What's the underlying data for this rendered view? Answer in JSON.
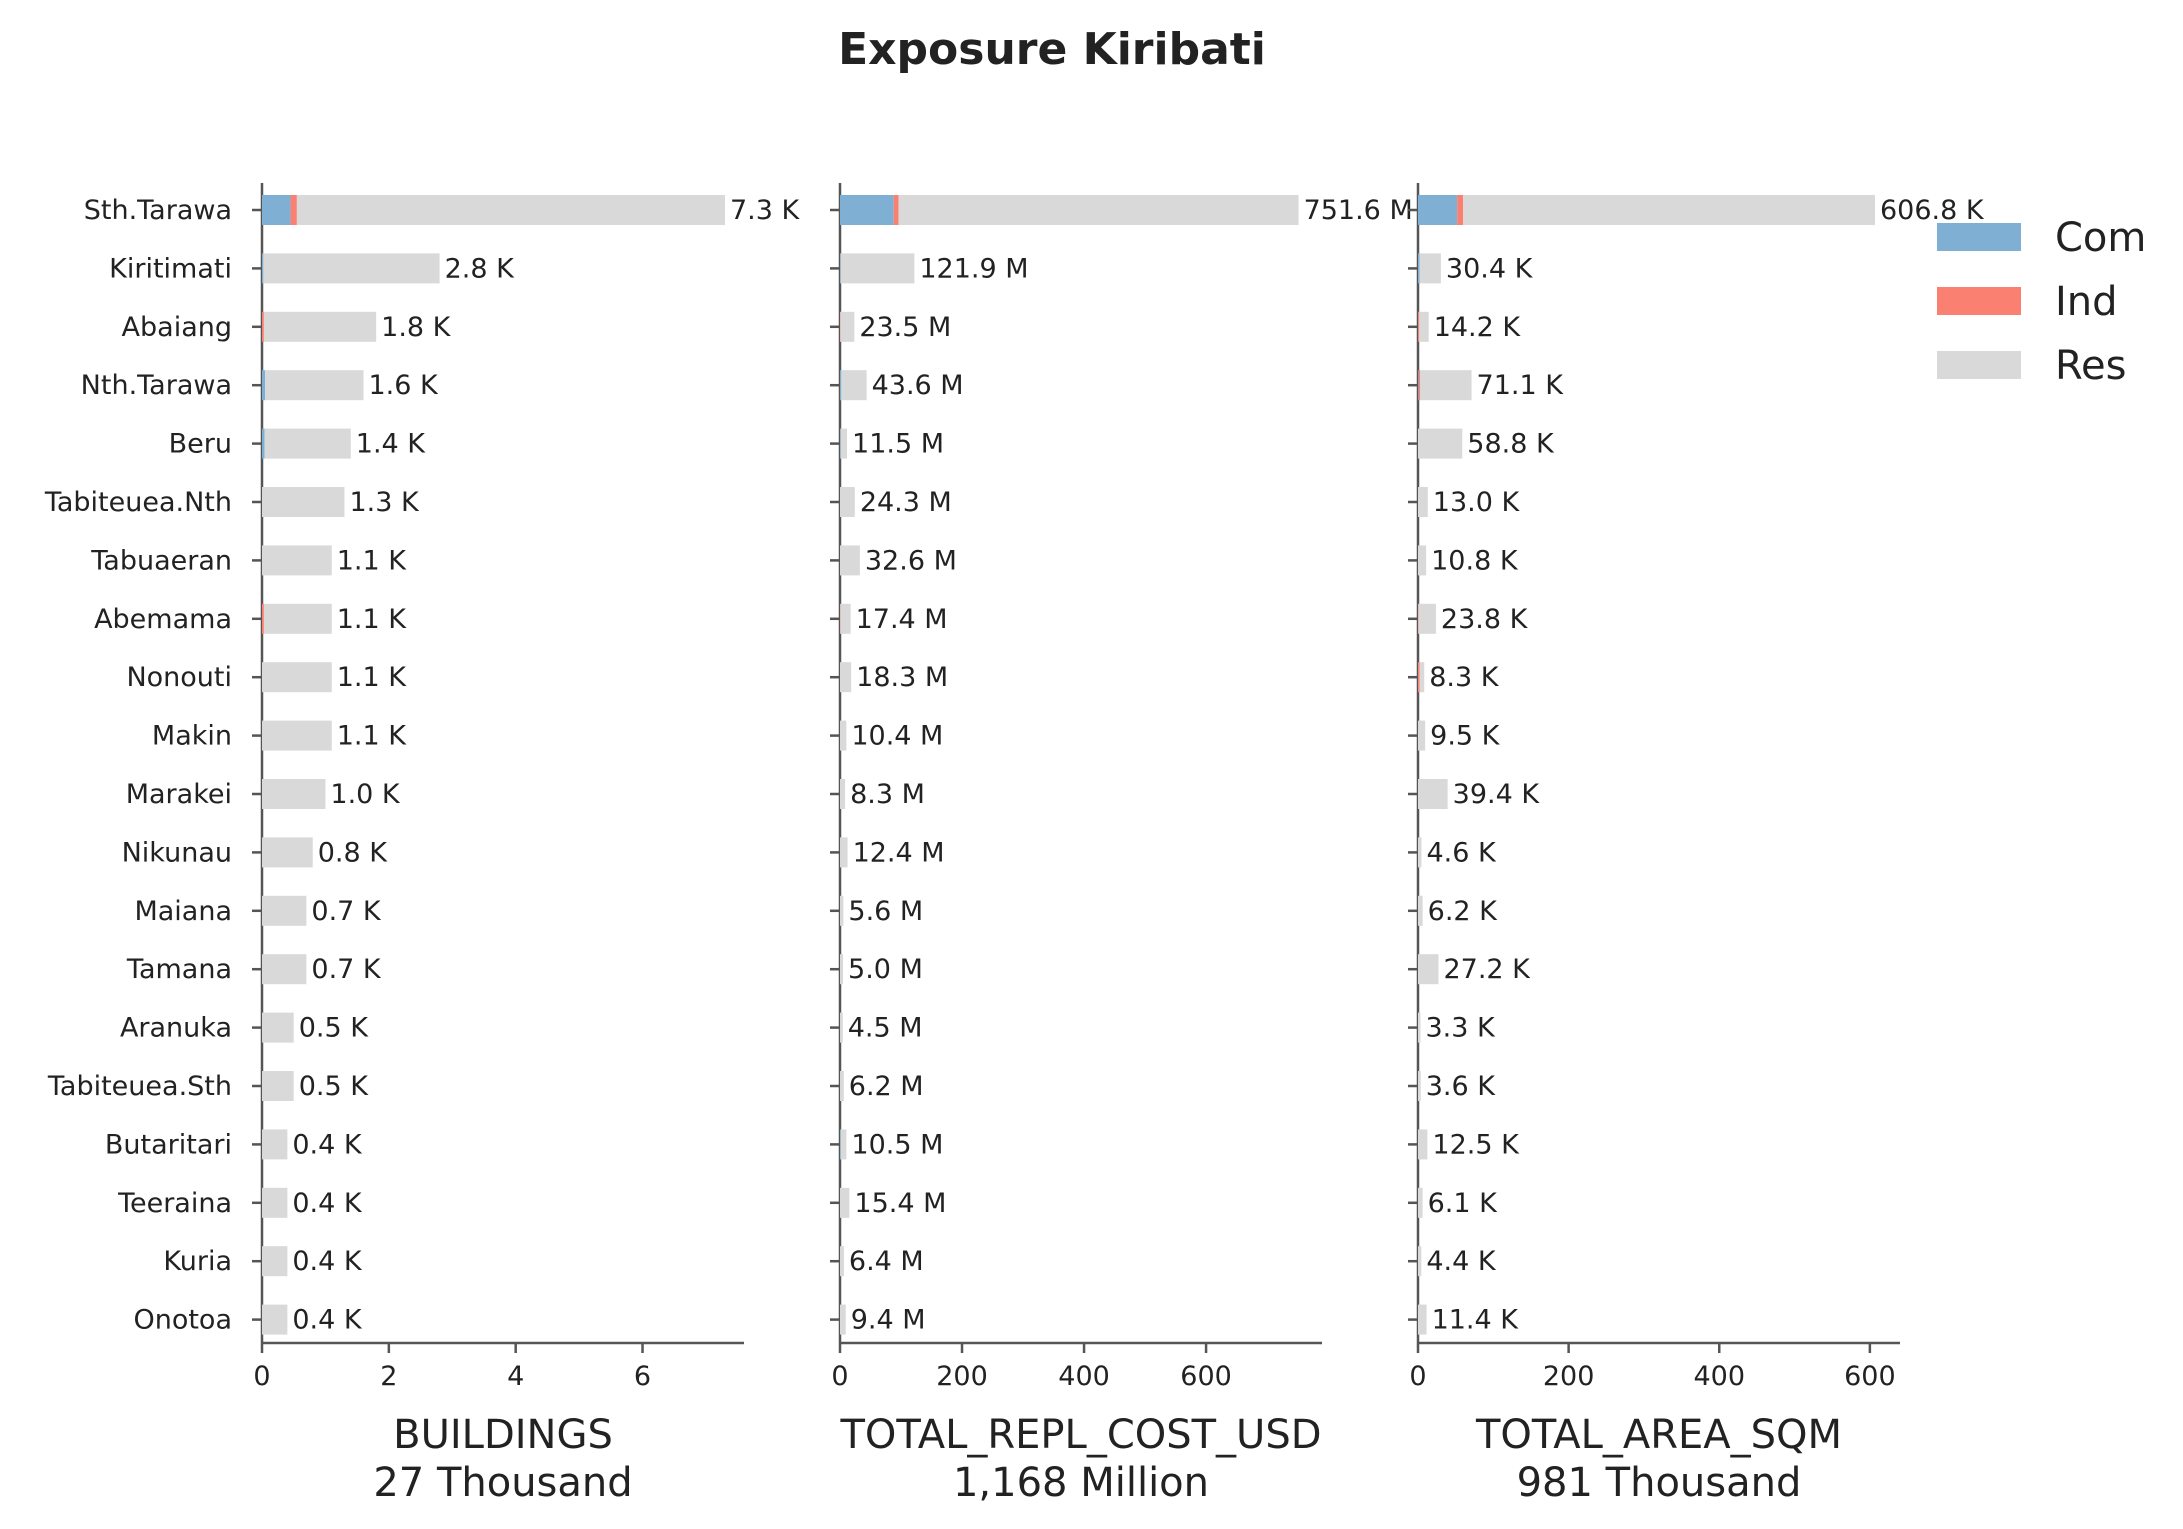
{
  "chart_data": {
    "type": "bar",
    "orientation": "horizontal-stacked",
    "title": "Exposure Kiribati",
    "categories": [
      "Sth.Tarawa",
      "Kiritimati",
      "Abaiang",
      "Nth.Tarawa",
      "Beru",
      "Tabiteuea.Nth",
      "Tabuaeran",
      "Abemama",
      "Nonouti",
      "Makin",
      "Marakei",
      "Nikunau",
      "Maiana",
      "Tamana",
      "Aranuka",
      "Tabiteuea.Sth",
      "Butaritari",
      "Teeraina",
      "Kuria",
      "Onotoa"
    ],
    "legend": {
      "position": "top-right",
      "entries": [
        {
          "label": "Com",
          "color": "#7fb0d4"
        },
        {
          "label": "Ind",
          "color": "#fa8072"
        },
        {
          "label": "Res",
          "color": "#d9d9d9"
        }
      ]
    },
    "panels": [
      {
        "xlabel": "BUILDINGS",
        "subtitle": "27 Thousand",
        "xlim": [
          0,
          7.6
        ],
        "xticks": [
          0,
          2,
          4,
          6
        ],
        "series": [
          {
            "name": "Com",
            "values": [
              0.45,
              0.02,
              0.0,
              0.05,
              0.04,
              0.0,
              0.0,
              0.0,
              0.0,
              0.0,
              0.0,
              0.0,
              0.0,
              0.0,
              0.0,
              0.0,
              0.0,
              0.0,
              0.0,
              0.0
            ]
          },
          {
            "name": "Ind",
            "values": [
              0.1,
              0.0,
              0.03,
              0.0,
              0.0,
              0.0,
              0.0,
              0.03,
              0.0,
              0.0,
              0.0,
              0.0,
              0.0,
              0.0,
              0.0,
              0.0,
              0.0,
              0.0,
              0.0,
              0.0
            ]
          },
          {
            "name": "Res",
            "values": [
              6.75,
              2.78,
              1.77,
              1.55,
              1.36,
              1.3,
              1.1,
              1.07,
              1.1,
              1.1,
              1.0,
              0.8,
              0.7,
              0.7,
              0.5,
              0.5,
              0.4,
              0.4,
              0.4,
              0.4
            ]
          }
        ],
        "labels": [
          "7.3 K",
          "2.8 K",
          "1.8 K",
          "1.6 K",
          "1.4 K",
          "1.3 K",
          "1.1 K",
          "1.1 K",
          "1.1 K",
          "1.1 K",
          "1.0 K",
          "0.8 K",
          "0.7 K",
          "0.7 K",
          "0.5 K",
          "0.5 K",
          "0.4 K",
          "0.4 K",
          "0.4 K",
          "0.4 K"
        ]
      },
      {
        "xlabel": "TOTAL_REPL_COST_USD",
        "subtitle": "1,168 Million",
        "xlim": [
          0,
          790
        ],
        "xticks": [
          0,
          200,
          400,
          600
        ],
        "series": [
          {
            "name": "Com",
            "values": [
              88,
              1,
              0,
              2,
              1,
              0,
              0,
              0,
              0,
              0,
              0,
              0,
              0,
              0,
              0,
              0,
              1,
              0,
              0,
              0
            ]
          },
          {
            "name": "Ind",
            "values": [
              8,
              0,
              0.5,
              0,
              0,
              0,
              0,
              0.5,
              0,
              0,
              0,
              0,
              0,
              0,
              0,
              0,
              0,
              0,
              0,
              0
            ]
          },
          {
            "name": "Res",
            "values": [
              655.6,
              120.9,
              23.0,
              41.6,
              10.5,
              24.3,
              32.6,
              16.9,
              18.3,
              10.4,
              8.3,
              12.4,
              5.6,
              5.0,
              4.5,
              6.2,
              9.5,
              15.4,
              6.4,
              9.4
            ]
          }
        ],
        "labels": [
          "751.6 M",
          "121.9 M",
          "23.5 M",
          "43.6 M",
          "11.5 M",
          "24.3 M",
          "32.6 M",
          "17.4 M",
          "18.3 M",
          "10.4 M",
          "8.3 M",
          "12.4 M",
          "5.6 M",
          "5.0 M",
          "4.5 M",
          "6.2 M",
          "10.5 M",
          "15.4 M",
          "6.4 M",
          "9.4 M"
        ]
      },
      {
        "xlabel": "TOTAL_AREA_SQM",
        "subtitle": "981 Thousand",
        "xlim": [
          0,
          640
        ],
        "xticks": [
          0,
          200,
          400,
          600
        ],
        "series": [
          {
            "name": "Com",
            "values": [
              52,
              2,
              0,
              1,
              0,
              0,
              0,
              0,
              0,
              0,
              0,
              0,
              0,
              0,
              0,
              0,
              0,
              0,
              0,
              0
            ]
          },
          {
            "name": "Ind",
            "values": [
              8,
              0,
              1.5,
              2,
              0,
              0,
              0,
              0.5,
              2,
              0,
              0,
              0,
              0,
              0,
              0,
              0,
              0,
              0,
              0,
              0
            ]
          },
          {
            "name": "Res",
            "values": [
              546.8,
              28.4,
              12.7,
              68.1,
              58.8,
              13.0,
              10.8,
              23.3,
              6.3,
              9.5,
              39.4,
              4.6,
              6.2,
              27.2,
              3.3,
              3.6,
              12.5,
              6.1,
              4.4,
              11.4
            ]
          }
        ],
        "labels": [
          "606.8 K",
          "30.4 K",
          "14.2 K",
          "71.1 K",
          "58.8 K",
          "13.0 K",
          "10.8 K",
          "23.8 K",
          "8.3 K",
          "9.5 K",
          "39.4 K",
          "4.6 K",
          "6.2 K",
          "27.2 K",
          "3.3 K",
          "3.6 K",
          "12.5 K",
          "6.1 K",
          "4.4 K",
          "11.4 K"
        ]
      }
    ]
  }
}
